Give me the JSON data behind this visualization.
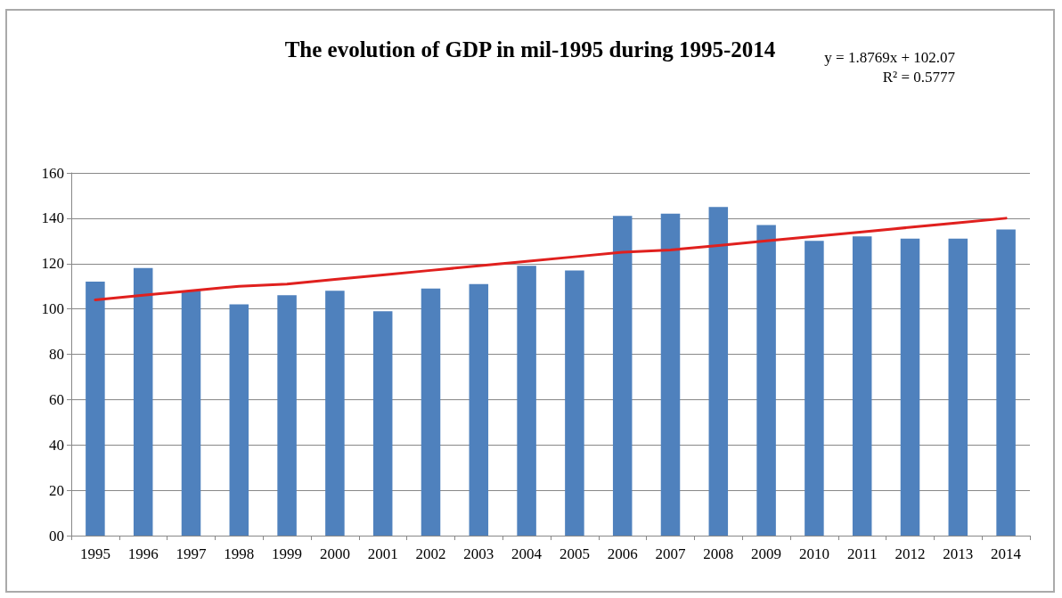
{
  "chart_data": {
    "type": "bar",
    "title": "The evolution of GDP in mil-1995 during 1995-2014",
    "categories": [
      "1995",
      "1996",
      "1997",
      "1998",
      "1999",
      "2000",
      "2001",
      "2002",
      "2003",
      "2004",
      "2005",
      "2006",
      "2007",
      "2008",
      "2009",
      "2010",
      "2011",
      "2012",
      "2013",
      "2014"
    ],
    "series": [
      {
        "color": "#4f81bd",
        "values": [
          112,
          118,
          108,
          102,
          106,
          108,
          99,
          109,
          111,
          119,
          117,
          141,
          142,
          145,
          137,
          130,
          132,
          131,
          131,
          135
        ]
      },
      {
        "type": "line",
        "color": "#e0201e",
        "values": [
          104,
          106,
          108,
          110,
          111,
          113,
          115,
          117,
          119,
          121,
          123,
          125,
          126,
          128,
          130,
          132,
          134,
          136,
          138,
          140
        ],
        "marker": "none",
        "line_style": "solid"
      }
    ],
    "ylim": [
      0,
      160
    ],
    "yticks": [
      {
        "value": 0,
        "label": "00"
      },
      20,
      40,
      60,
      80,
      100,
      120,
      140,
      160
    ],
    "grid": "y",
    "annotations": [
      "y = 1.8769x + 102.07",
      "R² = 0.5777"
    ]
  }
}
